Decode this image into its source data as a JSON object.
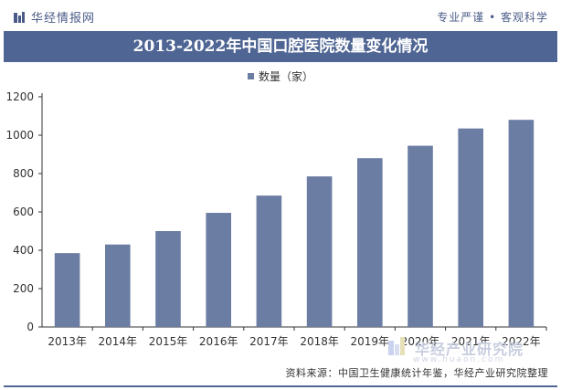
{
  "header": {
    "logo_text": "华经情报网",
    "slogan": "专业严谨 • 客观科学"
  },
  "watermark": {
    "brand": "华经产业研究院",
    "url": "www.huaon.com"
  },
  "source_text": "资料来源：中国卫生健康统计年鉴，华经产业研究院整理",
  "colors": {
    "header_text": "#4a5b87",
    "title_bg": "#4f6593",
    "bar": "#6b7da3",
    "axis": "#333333"
  },
  "chart_data": {
    "type": "bar",
    "title": "2013-2022年中国口腔医院数量变化情况",
    "xlabel": "",
    "ylabel": "",
    "categories": [
      "2013年",
      "2014年",
      "2015年",
      "2016年",
      "2017年",
      "2018年",
      "2019年",
      "2020年",
      "2021年",
      "2022年"
    ],
    "series": [
      {
        "name": "数量（家）",
        "values": [
          385,
          430,
          500,
          595,
          685,
          785,
          880,
          945,
          1035,
          1080
        ]
      }
    ],
    "ylim": [
      0,
      1200
    ],
    "yticks": [
      0,
      200,
      400,
      600,
      800,
      1000,
      1200
    ],
    "grid": false,
    "legend_position": "top-center"
  }
}
